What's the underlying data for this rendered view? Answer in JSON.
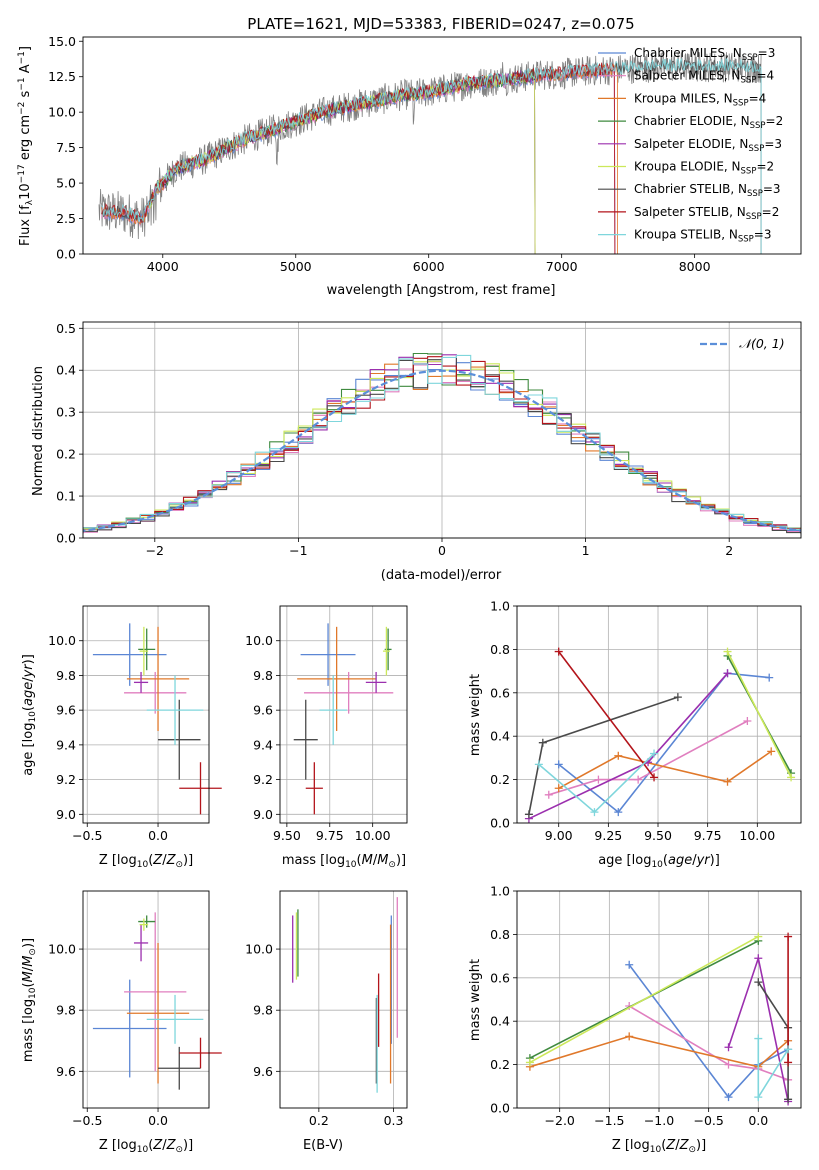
{
  "colors": {
    "chabrier_miles": "#5b86d4",
    "salpeter_miles": "#e07fbf",
    "kroupa_miles": "#e0782a",
    "chabrier_elodie": "#3f8a3f",
    "salpeter_elodie": "#9b2fae",
    "kroupa_elodie": "#cce85a",
    "chabrier_stelib": "#4a4a4a",
    "salpeter_stelib": "#b3141b",
    "kroupa_stelib": "#7fd6dc",
    "data": "#808080",
    "grid": "#b0b0b0"
  },
  "chart_data": [
    {
      "id": "spectrum",
      "type": "line",
      "title": "PLATE=1621, MJD=53383, FIBERID=0247, z=0.075",
      "xlabel": "wavelength [Angstrom, rest frame]",
      "ylabel": "Flux [f_λ10^-17 erg cm^-2 s^-1 A^-1]",
      "xlim": [
        3400,
        8800
      ],
      "ylim": [
        0,
        15.3
      ],
      "xticks": [
        4000,
        5000,
        6000,
        7000,
        8000
      ],
      "yticks": [
        0.0,
        2.5,
        5.0,
        7.5,
        10.0,
        12.5,
        15.0
      ],
      "grid": false,
      "legend_position": "top-right",
      "legend": [
        {
          "label": "Chabrier MILES, N",
          "sub": "SSP",
          "suffix": "=3",
          "color": "chabrier_miles"
        },
        {
          "label": "Salpeter MILES, N",
          "sub": "SSP",
          "suffix": "=4",
          "color": "salpeter_miles"
        },
        {
          "label": "Kroupa MILES, N",
          "sub": "SSP",
          "suffix": "=4",
          "color": "kroupa_miles"
        },
        {
          "label": "Chabrier ELODIE, N",
          "sub": "SSP",
          "suffix": "=2",
          "color": "chabrier_elodie"
        },
        {
          "label": "Salpeter ELODIE, N",
          "sub": "SSP",
          "suffix": "=3",
          "color": "salpeter_elodie"
        },
        {
          "label": "Kroupa ELODIE, N",
          "sub": "SSP",
          "suffix": "=2",
          "color": "kroupa_elodie"
        },
        {
          "label": "Chabrier STELIB, N",
          "sub": "SSP",
          "suffix": "=3",
          "color": "chabrier_stelib"
        },
        {
          "label": "Salpeter STELIB, N",
          "sub": "SSP",
          "suffix": "=2",
          "color": "salpeter_stelib"
        },
        {
          "label": "Kroupa STELIB, N",
          "sub": "SSP",
          "suffix": "=3",
          "color": "kroupa_stelib"
        }
      ],
      "continuum": {
        "x": [
          3530,
          3700,
          3850,
          3950,
          4100,
          4300,
          4600,
          4900,
          5200,
          5500,
          5800,
          6000,
          6300,
          6600,
          6800,
          7000,
          7200,
          7400,
          7700,
          8000,
          8300,
          8500
        ],
        "y": [
          3.0,
          2.9,
          2.5,
          4.5,
          6.0,
          6.6,
          8.0,
          9.0,
          10.0,
          10.6,
          11.2,
          11.4,
          12.0,
          12.3,
          12.6,
          12.7,
          12.9,
          13.0,
          13.2,
          13.2,
          13.2,
          13.1
        ]
      },
      "spectrum_range": [
        3520,
        8500
      ]
    },
    {
      "id": "residuals",
      "type": "histogram",
      "xlabel": "(data-model)/error",
      "ylabel": "Normed distribution",
      "xlim": [
        -2.5,
        2.5
      ],
      "ylim": [
        0,
        0.515
      ],
      "xticks": [
        -2,
        -1,
        0,
        1,
        2
      ],
      "yticks": [
        0.0,
        0.1,
        0.2,
        0.3,
        0.4,
        0.5
      ],
      "grid": true,
      "bin_width": 0.1,
      "legend_position": "top-right",
      "reference_curve_label": "𝒩(0, 1)",
      "reference_curve_color": "#5b8fd9"
    },
    {
      "id": "age-vs-Z",
      "type": "errorbar",
      "xlabel": "Z [log10(Z/Z⊙)]",
      "ylabel": "age [log10(age/yr)]",
      "xlim": [
        -0.53,
        0.36
      ],
      "ylim": [
        8.95,
        10.2
      ],
      "xticks": [
        -0.5,
        0.0
      ],
      "yticks": [
        9.0,
        9.2,
        9.4,
        9.6,
        9.8,
        10.0
      ],
      "grid": true,
      "points": [
        {
          "color": "chabrier_miles",
          "x": -0.2,
          "xerr": 0.26,
          "y": 9.92,
          "yerr": 0.18
        },
        {
          "color": "salpeter_miles",
          "x": -0.02,
          "xerr": 0.22,
          "y": 9.7,
          "yerr": 0.12
        },
        {
          "color": "kroupa_miles",
          "x": 0.0,
          "xerr": 0.22,
          "y": 9.78,
          "yerr": 0.3
        },
        {
          "color": "chabrier_elodie",
          "x": -0.08,
          "xerr": 0.06,
          "y": 9.95,
          "yerr": 0.12
        },
        {
          "color": "salpeter_elodie",
          "x": -0.12,
          "xerr": 0.05,
          "y": 9.76,
          "yerr": 0.06
        },
        {
          "color": "kroupa_elodie",
          "x": -0.1,
          "xerr": 0.03,
          "y": 9.94,
          "yerr": 0.14
        },
        {
          "color": "chabrier_stelib",
          "x": 0.15,
          "xerr": 0.15,
          "y": 9.43,
          "yerr": 0.23
        },
        {
          "color": "salpeter_stelib",
          "x": 0.3,
          "xerr": 0.15,
          "y": 9.15,
          "yerr": 0.15
        },
        {
          "color": "kroupa_stelib",
          "x": 0.12,
          "xerr": 0.2,
          "y": 9.6,
          "yerr": 0.2
        }
      ]
    },
    {
      "id": "age-vs-mass",
      "type": "errorbar",
      "xlabel": "mass [log10(M/M⊙)]",
      "xlim": [
        9.46,
        10.2
      ],
      "ylim": [
        8.95,
        10.2
      ],
      "xticks": [
        9.5,
        9.75,
        10.0
      ],
      "yticks": [
        9.0,
        9.2,
        9.4,
        9.6,
        9.8,
        10.0
      ],
      "grid": true,
      "points": [
        {
          "color": "chabrier_miles",
          "x": 9.74,
          "xerr": 0.16,
          "y": 9.92,
          "yerr": 0.18
        },
        {
          "color": "salpeter_miles",
          "x": 9.86,
          "xerr": 0.26,
          "y": 9.7,
          "yerr": 0.12
        },
        {
          "color": "kroupa_miles",
          "x": 9.79,
          "xerr": 0.23,
          "y": 9.78,
          "yerr": 0.3
        },
        {
          "color": "chabrier_elodie",
          "x": 10.09,
          "xerr": 0.02,
          "y": 9.95,
          "yerr": 0.12
        },
        {
          "color": "salpeter_elodie",
          "x": 10.02,
          "xerr": 0.06,
          "y": 9.76,
          "yerr": 0.06
        },
        {
          "color": "kroupa_elodie",
          "x": 10.08,
          "xerr": 0.02,
          "y": 9.94,
          "yerr": 0.14
        },
        {
          "color": "chabrier_stelib",
          "x": 9.61,
          "xerr": 0.07,
          "y": 9.43,
          "yerr": 0.23
        },
        {
          "color": "salpeter_stelib",
          "x": 9.66,
          "xerr": 0.05,
          "y": 9.15,
          "yerr": 0.15
        },
        {
          "color": "kroupa_stelib",
          "x": 9.77,
          "xerr": 0.08,
          "y": 9.6,
          "yerr": 0.2
        }
      ]
    },
    {
      "id": "massweight-vs-age",
      "type": "line",
      "xlabel": "age [log10(age/yr)]",
      "ylabel": "mass weight",
      "xlim": [
        8.79,
        10.22
      ],
      "ylim": [
        0,
        1.0
      ],
      "xticks": [
        9.0,
        9.25,
        9.5,
        9.75,
        10.0
      ],
      "yticks": [
        0.0,
        0.2,
        0.4,
        0.6,
        0.8,
        1.0
      ],
      "grid": true,
      "series": [
        {
          "color": "chabrier_miles",
          "x": [
            9.0,
            9.3,
            9.85,
            10.06
          ],
          "y": [
            0.27,
            0.05,
            0.69,
            0.67
          ]
        },
        {
          "color": "salpeter_miles",
          "x": [
            8.95,
            9.2,
            9.4,
            9.95
          ],
          "y": [
            0.13,
            0.2,
            0.2,
            0.47
          ]
        },
        {
          "color": "kroupa_miles",
          "x": [
            9.0,
            9.3,
            9.85,
            10.07
          ],
          "y": [
            0.16,
            0.31,
            0.19,
            0.33
          ]
        },
        {
          "color": "chabrier_elodie",
          "x": [
            9.85,
            10.17
          ],
          "y": [
            0.77,
            0.23
          ]
        },
        {
          "color": "salpeter_elodie",
          "x": [
            8.85,
            9.45,
            9.85
          ],
          "y": [
            0.02,
            0.28,
            0.69
          ]
        },
        {
          "color": "kroupa_elodie",
          "x": [
            9.85,
            10.17
          ],
          "y": [
            0.79,
            0.21
          ]
        },
        {
          "color": "chabrier_stelib",
          "x": [
            8.85,
            8.92,
            9.6
          ],
          "y": [
            0.04,
            0.37,
            0.58
          ]
        },
        {
          "color": "salpeter_stelib",
          "x": [
            9.0,
            9.48
          ],
          "y": [
            0.79,
            0.21
          ]
        },
        {
          "color": "kroupa_stelib",
          "x": [
            8.9,
            9.18,
            9.48
          ],
          "y": [
            0.27,
            0.05,
            0.32
          ]
        }
      ]
    },
    {
      "id": "mass-vs-Z",
      "type": "errorbar",
      "xlabel": "Z [log10(Z/Z⊙)]",
      "ylabel": "mass [log10(M/M⊙)]",
      "xlim": [
        -0.53,
        0.36
      ],
      "ylim": [
        9.48,
        10.19
      ],
      "xticks": [
        -0.5,
        0.0
      ],
      "yticks": [
        9.6,
        9.8,
        10.0
      ],
      "grid": true,
      "points": [
        {
          "color": "chabrier_miles",
          "x": -0.2,
          "xerr": 0.26,
          "y": 9.74,
          "yerr": 0.16
        },
        {
          "color": "salpeter_miles",
          "x": -0.02,
          "xerr": 0.22,
          "y": 9.86,
          "yerr": 0.26
        },
        {
          "color": "kroupa_miles",
          "x": 0.0,
          "xerr": 0.22,
          "y": 9.79,
          "yerr": 0.23
        },
        {
          "color": "chabrier_elodie",
          "x": -0.08,
          "xerr": 0.06,
          "y": 10.09,
          "yerr": 0.02
        },
        {
          "color": "salpeter_elodie",
          "x": -0.12,
          "xerr": 0.05,
          "y": 10.02,
          "yerr": 0.06
        },
        {
          "color": "kroupa_elodie",
          "x": -0.1,
          "xerr": 0.03,
          "y": 10.08,
          "yerr": 0.02
        },
        {
          "color": "chabrier_stelib",
          "x": 0.15,
          "xerr": 0.15,
          "y": 9.61,
          "yerr": 0.07
        },
        {
          "color": "salpeter_stelib",
          "x": 0.3,
          "xerr": 0.15,
          "y": 9.66,
          "yerr": 0.05
        },
        {
          "color": "kroupa_stelib",
          "x": 0.12,
          "xerr": 0.2,
          "y": 9.77,
          "yerr": 0.08
        }
      ]
    },
    {
      "id": "mass-vs-ebv",
      "type": "errorbar",
      "xlabel": "E(B-V)",
      "xlim": [
        0.148,
        0.318
      ],
      "ylim": [
        9.48,
        10.19
      ],
      "xticks": [
        0.2,
        0.3
      ],
      "yticks": [
        9.6,
        9.8,
        10.0
      ],
      "grid": true,
      "points": [
        {
          "color": "chabrier_miles",
          "x": 0.297,
          "xerr": 0,
          "y": 9.9,
          "yerr": 0.21
        },
        {
          "color": "salpeter_miles",
          "x": 0.305,
          "xerr": 0,
          "y": 9.94,
          "yerr": 0.23
        },
        {
          "color": "kroupa_miles",
          "x": 0.296,
          "xerr": 0,
          "y": 9.82,
          "yerr": 0.26
        },
        {
          "color": "chabrier_elodie",
          "x": 0.172,
          "xerr": 0,
          "y": 10.02,
          "yerr": 0.11
        },
        {
          "color": "salpeter_elodie",
          "x": 0.165,
          "xerr": 0,
          "y": 10.0,
          "yerr": 0.11
        },
        {
          "color": "kroupa_elodie",
          "x": 0.17,
          "xerr": 0,
          "y": 10.01,
          "yerr": 0.11
        },
        {
          "color": "chabrier_stelib",
          "x": 0.277,
          "xerr": 0,
          "y": 9.7,
          "yerr": 0.14
        },
        {
          "color": "salpeter_stelib",
          "x": 0.28,
          "xerr": 0,
          "y": 9.8,
          "yerr": 0.12
        },
        {
          "color": "kroupa_stelib",
          "x": 0.278,
          "xerr": 0,
          "y": 9.69,
          "yerr": 0.16
        }
      ]
    },
    {
      "id": "massweight-vs-Z",
      "type": "line",
      "xlabel": "Z [log10(Z/Z⊙)]",
      "ylabel": "mass weight",
      "xlim": [
        -2.43,
        0.43
      ],
      "ylim": [
        0,
        1.0
      ],
      "xticks": [
        -2.0,
        -1.5,
        -1.0,
        -0.5,
        0.0
      ],
      "yticks": [
        0.0,
        0.2,
        0.4,
        0.6,
        0.8,
        1.0
      ],
      "grid": true,
      "series": [
        {
          "color": "chabrier_miles",
          "x": [
            -1.3,
            -0.3,
            0.0,
            0.3
          ],
          "y": [
            0.66,
            0.05,
            0.2,
            0.27
          ]
        },
        {
          "color": "salpeter_miles",
          "x": [
            -1.3,
            -0.3,
            0.0,
            0.3
          ],
          "y": [
            0.47,
            0.2,
            0.18,
            0.13
          ]
        },
        {
          "color": "kroupa_miles",
          "x": [
            -2.3,
            -1.3,
            0.0,
            0.3
          ],
          "y": [
            0.19,
            0.33,
            0.19,
            0.31
          ]
        },
        {
          "color": "chabrier_elodie",
          "x": [
            -2.3,
            0.0
          ],
          "y": [
            0.23,
            0.77
          ]
        },
        {
          "color": "salpeter_elodie",
          "x": [
            -0.3,
            0.0,
            0.3
          ],
          "y": [
            0.28,
            0.69,
            0.03
          ]
        },
        {
          "color": "kroupa_elodie",
          "x": [
            -2.3,
            0.0
          ],
          "y": [
            0.21,
            0.79
          ]
        },
        {
          "color": "chabrier_stelib",
          "x": [
            0.0,
            0.3,
            0.3
          ],
          "y": [
            0.58,
            0.37,
            0.04
          ]
        },
        {
          "color": "salpeter_stelib",
          "x": [
            0.3,
            0.3
          ],
          "y": [
            0.79,
            0.21
          ]
        },
        {
          "color": "kroupa_stelib",
          "x": [
            0.0,
            0.0,
            0.3
          ],
          "y": [
            0.32,
            0.05,
            0.27
          ]
        }
      ]
    }
  ]
}
